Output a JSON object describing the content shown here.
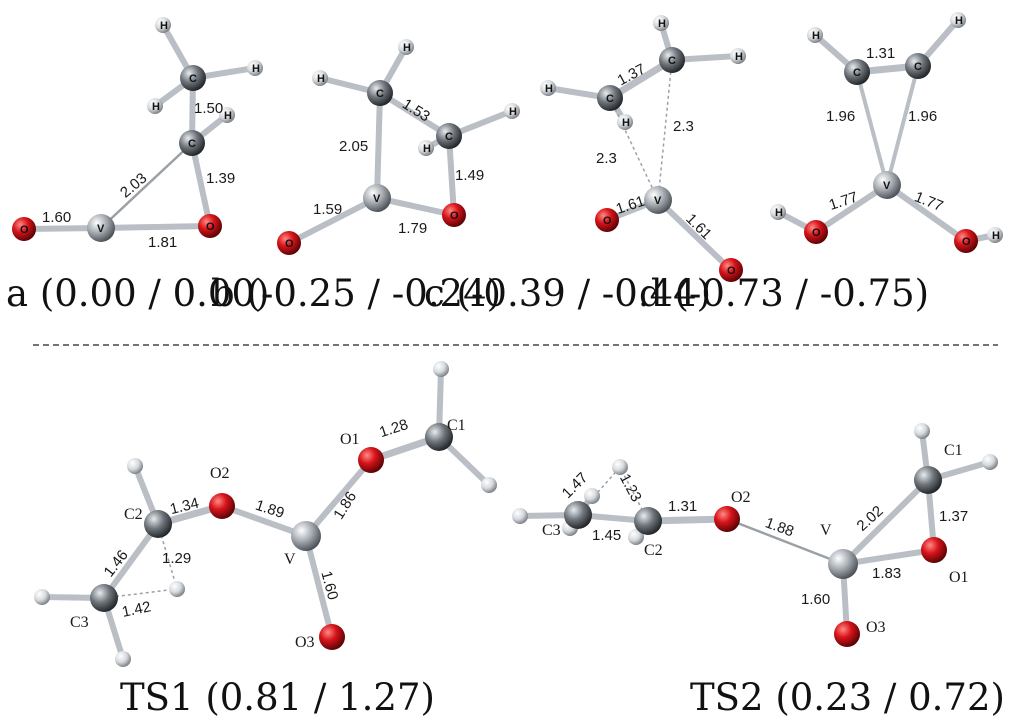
{
  "captions": {
    "a": "a (0.00 / 0.00)",
    "b": "b (-0.25 / -0.24)",
    "c": "c (-0.39 / -0.44)",
    "d": "d (-0.73 / -0.75)",
    "ts1": "TS1 (0.81 / 1.27)",
    "ts2": "TS2 (0.23 / 0.72)"
  },
  "atom_letters": {
    "h": "H",
    "c": "C",
    "o": "O",
    "v": "V"
  },
  "molecule_a": {
    "bond_c_c": "1.50",
    "bond_v_c": "2.03",
    "bond_c_o": "1.39",
    "bond_v_o_terminal": "1.60",
    "bond_v_o_ring": "1.81"
  },
  "molecule_b": {
    "bond_c_c": "1.53",
    "bond_v_c": "2.05",
    "bond_c_o": "1.49",
    "bond_v_o_terminal": "1.59",
    "bond_v_o_ring": "1.79"
  },
  "molecule_c": {
    "bond_c_c": "1.37",
    "bond_v_c1": "2.3",
    "bond_v_c2": "2.3",
    "bond_v_o1": "1.61",
    "bond_v_o2": "1.61"
  },
  "molecule_d": {
    "bond_c_c": "1.31",
    "bond_v_c1": "1.96",
    "bond_v_c2": "1.96",
    "bond_v_o1": "1.77",
    "bond_v_o2": "1.77"
  },
  "ts1": {
    "labels": {
      "c1": "C1",
      "c2": "C2",
      "c3": "C3",
      "o1": "O1",
      "o2": "O2",
      "o3": "O3",
      "v": "V"
    },
    "bond_o1_c1": "1.28",
    "bond_c2_o2": "1.34",
    "bond_o2_v": "1.89",
    "bond_o1_v": "1.86",
    "bond_v_o3": "1.60",
    "bond_c2_c3": "1.46",
    "bond_c2_h": "1.29",
    "bond_c3_h": "1.42"
  },
  "ts2": {
    "labels": {
      "c1": "C1",
      "c2": "C2",
      "c3": "C3",
      "o1": "O1",
      "o2": "O2",
      "o3": "O3",
      "v": "V"
    },
    "bond_c3_h": "1.47",
    "bond_c2_h": "1.23",
    "bond_c2_o2": "1.31",
    "bond_c3_c2": "1.45",
    "bond_o2_v": "1.88",
    "bond_v_c1": "2.02",
    "bond_c1_o1": "1.37",
    "bond_v_o1": "1.83",
    "bond_v_o3": "1.60"
  },
  "colors": {
    "oxygen": "#d8141a",
    "carbon": "#6f757b",
    "vanadium": "#a7adb3",
    "hydrogen": "#d6dadd",
    "bond": "#b9bfc5"
  }
}
